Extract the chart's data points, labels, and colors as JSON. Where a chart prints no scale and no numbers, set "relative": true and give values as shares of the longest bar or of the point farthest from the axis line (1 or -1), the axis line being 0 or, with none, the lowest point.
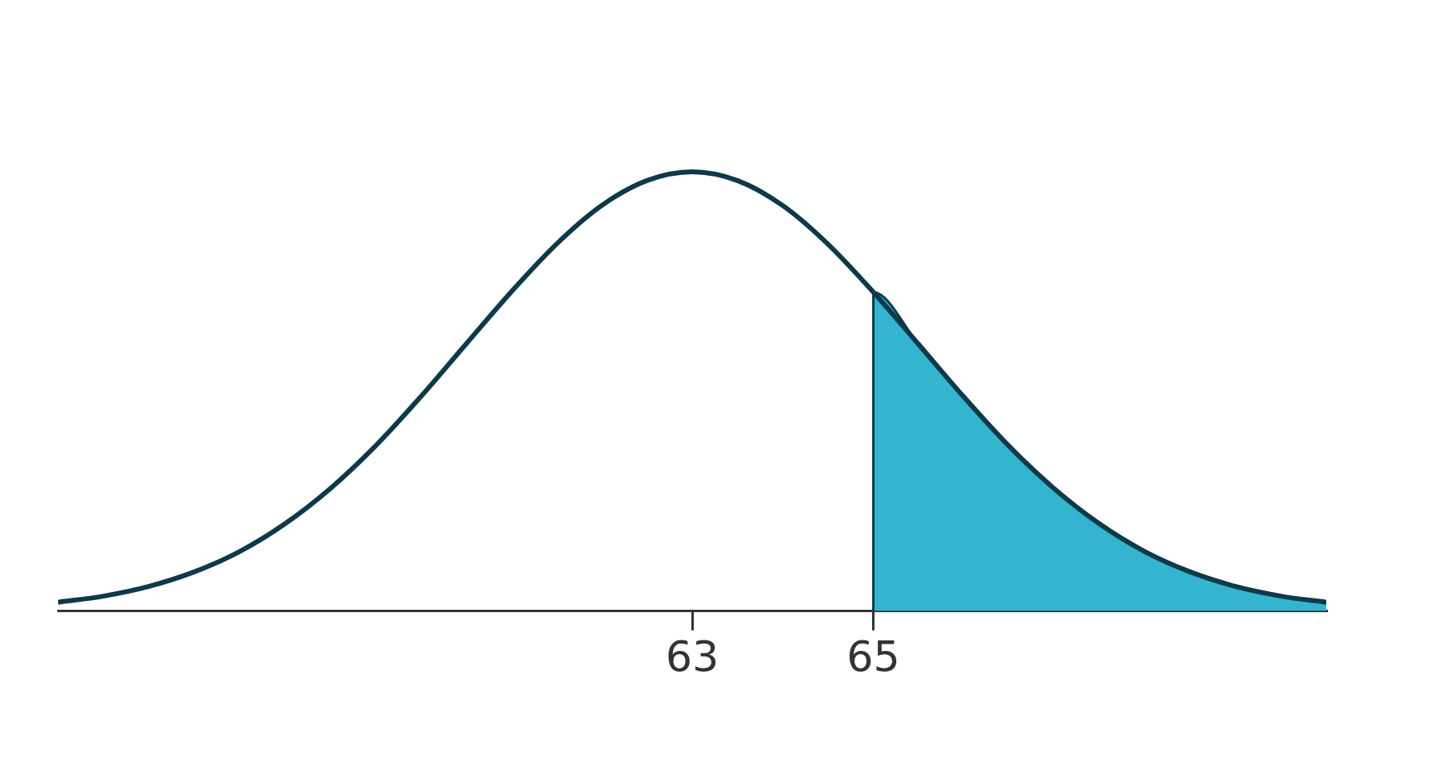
{
  "chart_data": {
    "type": "line",
    "relative": true,
    "xlim": [
      56,
      70
    ],
    "xticks": [
      63,
      65
    ],
    "grid": false,
    "legend": false,
    "marker": "none",
    "line_style": "solid",
    "series": [
      {
        "type": "line",
        "color": "#0d3a4a",
        "x": [
          56,
          56.5,
          57,
          57.5,
          58,
          58.5,
          59,
          59.5,
          60,
          60.5,
          61,
          61.5,
          62,
          62.5,
          63,
          63.5,
          64,
          64.5,
          65,
          65.5,
          66,
          66.5,
          67,
          67.5,
          68,
          68.5,
          69,
          69.5,
          70
        ],
        "values": [
          0.02,
          0.034,
          0.056,
          0.089,
          0.135,
          0.198,
          0.278,
          0.375,
          0.487,
          0.607,
          0.726,
          0.835,
          0.923,
          0.98,
          1,
          0.98,
          0.923,
          0.835,
          0.726,
          0.607,
          0.487,
          0.375,
          0.278,
          0.198,
          0.135,
          0.089,
          0.056,
          0.034,
          0.02
        ]
      },
      {
        "type": "area",
        "color": "#33b5cf",
        "x": [
          65,
          65,
          65.5,
          66,
          66.5,
          67,
          67.5,
          68,
          68.5,
          69,
          69.5,
          70
        ],
        "values": [
          0,
          0.726,
          0.607,
          0.487,
          0.375,
          0.278,
          0.198,
          0.135,
          0.089,
          0.056,
          0.034,
          0.02
        ]
      }
    ]
  }
}
